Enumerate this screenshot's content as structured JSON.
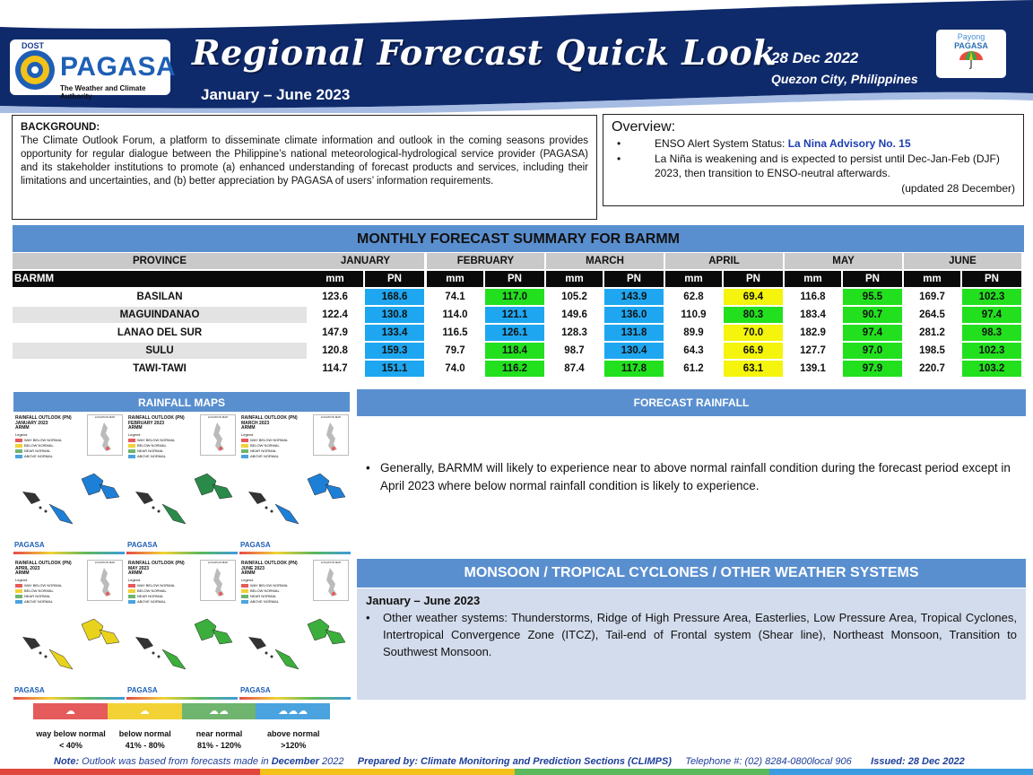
{
  "header": {
    "dost": "DOST",
    "agency": "PAGASA",
    "tagline": "The Weather and Climate Authority",
    "title": "Regional Forecast Quick Look",
    "period": "January – June 2023",
    "date": "28 Dec 2022",
    "place": "Quezon City, Philippines",
    "payong_top": "Payong",
    "payong_bottom": "PAGASA",
    "colors": {
      "navy": "#0f2a6b",
      "accent_blue": "#5a8fcf"
    }
  },
  "background": {
    "heading": "BACKGROUND:",
    "text": "The Climate Outlook Forum, a platform to disseminate climate information and outlook in the coming seasons provides opportunity for regular dialogue between the Philippine’s national meteorological-hydrological service provider (PAGASA) and its stakeholder institutions to promote (a) enhanced understanding of forecast products and services, including their limitations and uncertainties, and (b) better appreciation by PAGASA of users’ information requirements."
  },
  "overview": {
    "heading": "Overview:",
    "status_label": "ENSO Alert System Status: ",
    "status_value": "La Nina Advisory No. 15",
    "item2": "La Niña is weakening and is expected to persist until Dec-Jan-Feb (DJF) 2023,  then transition to ENSO-neutral afterwards.",
    "updated": "(updated 28 December)",
    "bullet": "•"
  },
  "summary": {
    "title": "MONTHLY FORECAST SUMMARY FOR BARMM",
    "province_header": "PROVINCE",
    "region_label": "BARMM",
    "months": [
      "JANUARY",
      "FEBRUARY",
      "MARCH",
      "APRIL",
      "MAY",
      "JUNE"
    ],
    "sub_mm": "mm",
    "sub_pn": "PN",
    "pn_colors": {
      "blue": "#1ea7f0",
      "green": "#22e01e",
      "yellow": "#f4f40c"
    },
    "rows": [
      {
        "name": "BASILAN",
        "cells": [
          [
            "123.6",
            "168.6",
            "blue"
          ],
          [
            "74.1",
            "117.0",
            "green"
          ],
          [
            "105.2",
            "143.9",
            "blue"
          ],
          [
            "62.8",
            "69.4",
            "yellow"
          ],
          [
            "116.8",
            "95.5",
            "green"
          ],
          [
            "169.7",
            "102.3",
            "green"
          ]
        ]
      },
      {
        "name": "MAGUINDANAO",
        "cells": [
          [
            "122.4",
            "130.8",
            "blue"
          ],
          [
            "114.0",
            "121.1",
            "blue"
          ],
          [
            "149.6",
            "136.0",
            "blue"
          ],
          [
            "110.9",
            "80.3",
            "green"
          ],
          [
            "183.4",
            "90.7",
            "green"
          ],
          [
            "264.5",
            "97.4",
            "green"
          ]
        ]
      },
      {
        "name": "LANAO DEL SUR",
        "cells": [
          [
            "147.9",
            "133.4",
            "blue"
          ],
          [
            "116.5",
            "126.1",
            "blue"
          ],
          [
            "128.3",
            "131.8",
            "blue"
          ],
          [
            "89.9",
            "70.0",
            "yellow"
          ],
          [
            "182.9",
            "97.4",
            "green"
          ],
          [
            "281.2",
            "98.3",
            "green"
          ]
        ]
      },
      {
        "name": "SULU",
        "cells": [
          [
            "120.8",
            "159.3",
            "blue"
          ],
          [
            "79.7",
            "118.4",
            "green"
          ],
          [
            "98.7",
            "130.4",
            "blue"
          ],
          [
            "64.3",
            "66.9",
            "yellow"
          ],
          [
            "127.7",
            "97.0",
            "green"
          ],
          [
            "198.5",
            "102.3",
            "green"
          ]
        ]
      },
      {
        "name": "TAWI-TAWI",
        "cells": [
          [
            "114.7",
            "151.1",
            "blue"
          ],
          [
            "74.0",
            "116.2",
            "green"
          ],
          [
            "87.4",
            "117.8",
            "green"
          ],
          [
            "61.2",
            "63.1",
            "yellow"
          ],
          [
            "139.1",
            "97.9",
            "green"
          ],
          [
            "220.7",
            "103.2",
            "green"
          ]
        ]
      }
    ]
  },
  "maps": {
    "title": "RAINFALL MAPS",
    "panels": [
      {
        "title": [
          "RAINFALL OUTLOOK (PN)",
          "JANUARY 2023",
          "ARMM"
        ],
        "tone": "blue"
      },
      {
        "title": [
          "RAINFALL OUTLOOK (PN)",
          "FEBRUARY 2023",
          "ARMM"
        ],
        "tone": "mixed"
      },
      {
        "title": [
          "RAINFALL OUTLOOK (PN)",
          "MARCH 2023",
          "ARMM"
        ],
        "tone": "blue"
      },
      {
        "title": [
          "RAINFALL OUTLOOK (PN)",
          "APRIL 2023",
          "ARMM"
        ],
        "tone": "yellow"
      },
      {
        "title": [
          "RAINFALL OUTLOOK (PN)",
          "MAY 2023",
          "ARMM"
        ],
        "tone": "green"
      },
      {
        "title": [
          "RAINFALL OUTLOOK (PN)",
          "JUNE 2023",
          "ARMM"
        ],
        "tone": "green"
      }
    ],
    "mini_legend_title": "Legend",
    "mini_loc": "LOCATION MAP",
    "mini_legend": [
      "WAY BELOW NORMAL",
      "BELOW NORMAL",
      "NEAR NORMAL",
      "ABOVE NORMAL"
    ],
    "mini_logo": "PAGASA",
    "legend": [
      {
        "name": "way below normal",
        "range": "< 40%",
        "color": "#e55b5b"
      },
      {
        "name": "below normal",
        "range": "41% - 80%",
        "color": "#f2d234"
      },
      {
        "name": "near normal",
        "range": "81% - 120%",
        "color": "#6fb56f"
      },
      {
        "name": "above normal",
        "range": ">120%",
        "color": "#4aa3df"
      }
    ]
  },
  "forecast": {
    "title": "FORECAST RAINFALL",
    "bullet": "•",
    "text": "Generally, BARMM will likely to experience near to above normal rainfall condition during the forecast period except in April 2023 where below normal rainfall condition is likely to experience."
  },
  "monsoon": {
    "title": "MONSOON / TROPICAL CYCLONES / OTHER WEATHER SYSTEMS",
    "period": "January – June 2023",
    "bullet": "•",
    "text": "Other weather systems: Thunderstorms,  Ridge of High Pressure Area,  Easterlies, Low Pressure Area, Tropical Cyclones, Intertropical Convergence Zone (ITCZ), Tail-end of Frontal system (Shear line), Northeast Monsoon, Transition to Southwest Monsoon."
  },
  "footer": {
    "note_label": "Note:",
    "note_text": " Outlook was based from forecasts made in ",
    "note_month": "December",
    "note_year": " 2022",
    "prepared": "Prepared by: Climate Monitoring and Prediction Sections (CLIMPS)",
    "telephone": "Telephone #: (02) 8284-0800local 906",
    "issued": "Issued: 28 Dec 2022"
  }
}
